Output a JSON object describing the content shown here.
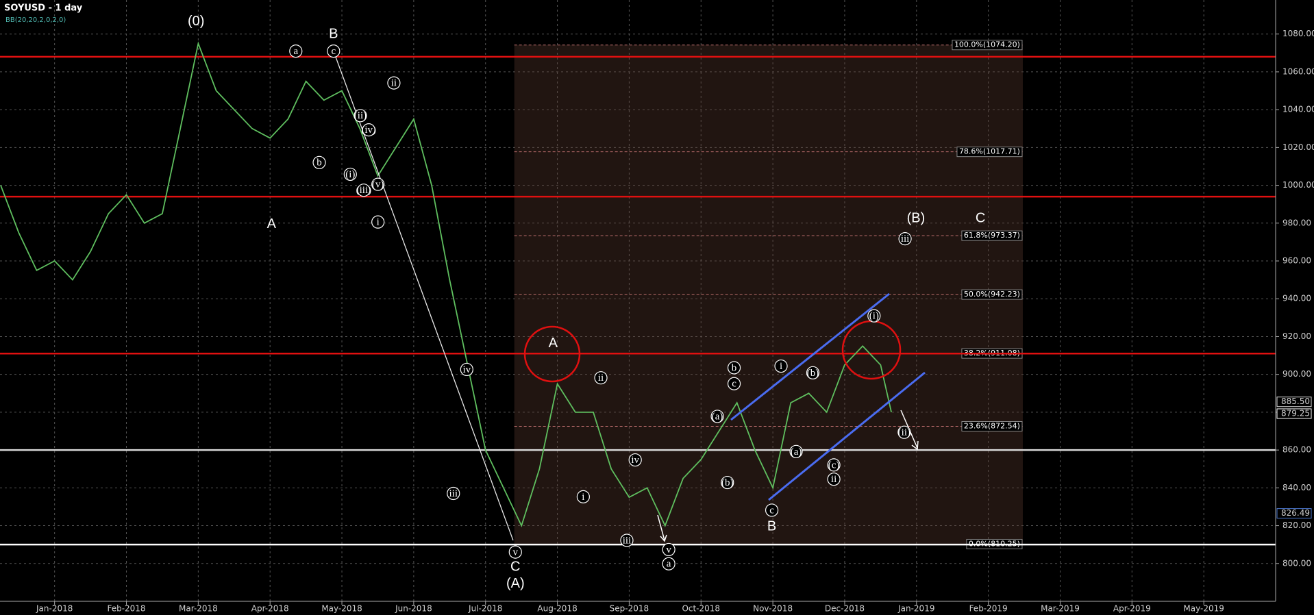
{
  "chart_data": {
    "type": "line",
    "title": "SOYUSD - 1 day",
    "subtitle": "BB(20,20,2,0,2,0)",
    "xlim": [
      -0.76,
      17
    ],
    "ylim": [
      780,
      1098
    ],
    "xticks": [
      {
        "value": 0,
        "label": "Jan-2018"
      },
      {
        "value": 1,
        "label": "Feb-2018"
      },
      {
        "value": 2,
        "label": "Mar-2018"
      },
      {
        "value": 3,
        "label": "Apr-2018"
      },
      {
        "value": 4,
        "label": "May-2018"
      },
      {
        "value": 5,
        "label": "Jun-2018"
      },
      {
        "value": 6,
        "label": "Jul-2018"
      },
      {
        "value": 7,
        "label": "Aug-2018"
      },
      {
        "value": 8,
        "label": "Sep-2018"
      },
      {
        "value": 9,
        "label": "Oct-2018"
      },
      {
        "value": 10,
        "label": "Nov-2018"
      },
      {
        "value": 11,
        "label": "Dec-2018"
      },
      {
        "value": 12,
        "label": "Jan-2019"
      },
      {
        "value": 13,
        "label": "Feb-2019"
      },
      {
        "value": 14,
        "label": "Mar-2019"
      },
      {
        "value": 15,
        "label": "Apr-2019"
      },
      {
        "value": 16,
        "label": "May-2019"
      }
    ],
    "yticks": [
      {
        "value": 800,
        "label": "800.00"
      },
      {
        "value": 820,
        "label": "820.00"
      },
      {
        "value": 840,
        "label": "840.00"
      },
      {
        "value": 860,
        "label": "860.00"
      },
      {
        "value": 880,
        "label": "880.00"
      },
      {
        "value": 900,
        "label": "900.00"
      },
      {
        "value": 920,
        "label": "920.00"
      },
      {
        "value": 940,
        "label": "940.00"
      },
      {
        "value": 960,
        "label": "960.00"
      },
      {
        "value": 980,
        "label": "980.00"
      },
      {
        "value": 1000,
        "label": "1000.00"
      },
      {
        "value": 1020,
        "label": "1020.00"
      },
      {
        "value": 1040,
        "label": "1040.00"
      },
      {
        "value": 1060,
        "label": "1060.00"
      },
      {
        "value": 1080,
        "label": "1080.00"
      }
    ],
    "grid": true,
    "x": [
      -0.75,
      -0.5,
      -0.25,
      0,
      0.25,
      0.5,
      0.75,
      1,
      1.25,
      1.5,
      1.75,
      2,
      2.25,
      2.5,
      2.75,
      3,
      3.25,
      3.5,
      3.75,
      4,
      4.25,
      4.5,
      4.75,
      5,
      5.25,
      5.5,
      5.75,
      6,
      6.25,
      6.5,
      6.75,
      7,
      7.25,
      7.5,
      7.75,
      8,
      8.25,
      8.5,
      8.75,
      9,
      9.25,
      9.5,
      9.75,
      10,
      10.25,
      10.5,
      10.75,
      11,
      11.25,
      11.5,
      11.65
    ],
    "series": [
      {
        "color": "#5fbf5f",
        "values": [
          1000,
          975,
          955,
          960,
          950,
          965,
          985,
          995,
          980,
          985,
          1030,
          1075,
          1050,
          1040,
          1030,
          1025,
          1035,
          1055,
          1045,
          1050,
          1030,
          1005,
          1020,
          1035,
          1000,
          950,
          905,
          860,
          840,
          820,
          850,
          895,
          880,
          880,
          850,
          835,
          840,
          820,
          845,
          855,
          870,
          885,
          860,
          840,
          885,
          890,
          880,
          905,
          915,
          905,
          880
        ]
      }
    ],
    "hlines": [
      {
        "value": 1068,
        "color": "#e01010"
      },
      {
        "value": 994,
        "color": "#e01010"
      },
      {
        "value": 911,
        "color": "#e01010"
      },
      {
        "value": 860,
        "color": "#d8d8d8"
      },
      {
        "value": 810,
        "color": "#ffffff"
      }
    ],
    "fib_xlim": [
      6.4,
      13.48
    ],
    "fib_levels": [
      {
        "value": 1074.2,
        "label": "100.0%(1074.20)"
      },
      {
        "value": 1017.71,
        "label": "78.6%(1017.71)"
      },
      {
        "value": 973.37,
        "label": "61.8%(973.37)"
      },
      {
        "value": 942.23,
        "label": "50.0%(942.23)"
      },
      {
        "value": 911.08,
        "label": "38.2%(911.08)"
      },
      {
        "value": 872.54,
        "label": "23.6%(872.54)"
      },
      {
        "value": 810.25,
        "label": "0.0%(810.25)"
      }
    ],
    "price_markers": [
      {
        "value": 885.5,
        "label": "885.50",
        "color": "#d8d8d8"
      },
      {
        "value": 879.25,
        "label": "879.25",
        "color": "#ffffff"
      },
      {
        "value": 826.49,
        "label": "826.49",
        "color": "#4a78d0"
      }
    ],
    "annotations": [
      {
        "text": "(0)",
        "circled": false
      },
      {
        "text": "A",
        "circled": false
      },
      {
        "text": "a",
        "circled": true
      },
      {
        "text": "B",
        "circled": false
      },
      {
        "text": "c",
        "circled": true
      },
      {
        "text": "b",
        "circled": true
      },
      {
        "text": "ii",
        "circled": true
      },
      {
        "text": "(ii)",
        "circled": true
      },
      {
        "text": "(iv)",
        "circled": true
      },
      {
        "text": "(i)",
        "circled": true
      },
      {
        "text": "(iii)",
        "circled": true
      },
      {
        "text": "(v)",
        "circled": true
      },
      {
        "text": "i",
        "circled": true
      },
      {
        "text": "iv",
        "circled": true
      },
      {
        "text": "iii",
        "circled": true
      },
      {
        "text": "v",
        "circled": true
      },
      {
        "text": "C",
        "circled": false
      },
      {
        "text": "(A)",
        "circled": false
      },
      {
        "text": "A",
        "circled": false
      },
      {
        "text": "ii",
        "circled": true
      },
      {
        "text": "i",
        "circled": true
      },
      {
        "text": "iv",
        "circled": true
      },
      {
        "text": "iii",
        "circled": true
      },
      {
        "text": "v",
        "circled": true
      },
      {
        "text": "a",
        "circled": true
      },
      {
        "text": "(a)",
        "circled": true
      },
      {
        "text": "b",
        "circled": true
      },
      {
        "text": "c",
        "circled": true
      },
      {
        "text": "(b)",
        "circled": true
      },
      {
        "text": "c",
        "circled": true
      },
      {
        "text": "B",
        "circled": false
      },
      {
        "text": "i",
        "circled": true
      },
      {
        "text": "(b)",
        "circled": true
      },
      {
        "text": "(a)",
        "circled": true
      },
      {
        "text": "(c)",
        "circled": true
      },
      {
        "text": "ii",
        "circled": true
      },
      {
        "text": "(B)",
        "circled": false
      },
      {
        "text": "C",
        "circled": false
      },
      {
        "text": "iii",
        "circled": true
      },
      {
        "text": "(i)",
        "circled": true
      },
      {
        "text": "(ii)",
        "circled": true
      }
    ]
  }
}
